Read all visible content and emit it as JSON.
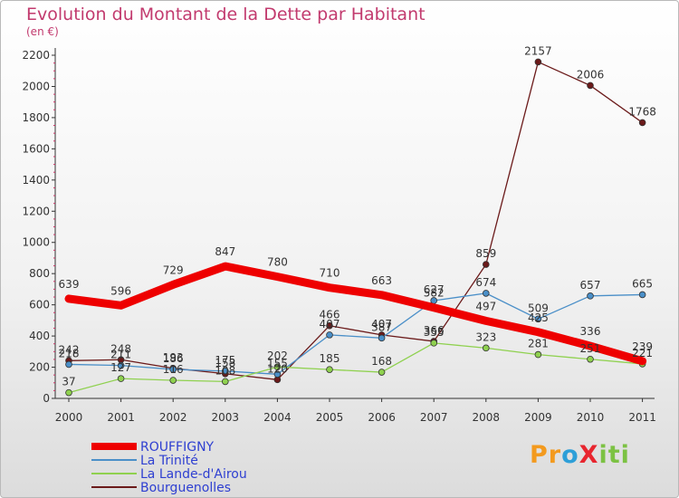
{
  "title": "Evolution du Montant de la Dette par Habitant",
  "subtitle": "(en €)",
  "logo": "ProXiti",
  "chart_data": {
    "type": "line",
    "x": [
      "2000",
      "2001",
      "2002",
      "2003",
      "2004",
      "2005",
      "2006",
      "2007",
      "2008",
      "2009",
      "2010",
      "2011"
    ],
    "ylim": [
      0,
      2200
    ],
    "yticks": [
      "0",
      "200",
      "400",
      "600",
      "800",
      "1000",
      "1200",
      "1400",
      "1600",
      "1800",
      "2000",
      "2200"
    ],
    "grid": false,
    "legend_position": "bottom-left",
    "series": [
      {
        "name": "ROUFFIGNY",
        "color": "#ee0000",
        "values": [
          639,
          596,
          729,
          847,
          780,
          710,
          663,
          582,
          497,
          425,
          336,
          239
        ]
      },
      {
        "name": "La Trinité",
        "color": "#4a8fc8",
        "values": [
          218,
          211,
          186,
          175,
          155,
          407,
          387,
          627,
          674,
          509,
          657,
          665
        ]
      },
      {
        "name": "La Lande-d'Airou",
        "color": "#8fd14f",
        "values": [
          37,
          127,
          116,
          108,
          202,
          185,
          168,
          355,
          323,
          281,
          251,
          221
        ]
      },
      {
        "name": "Bourguenolles",
        "color": "#6b1a1a",
        "values": [
          242,
          248,
          193,
          158,
          120,
          466,
          407,
          366,
          859,
          2157,
          2006,
          1768
        ]
      }
    ]
  }
}
